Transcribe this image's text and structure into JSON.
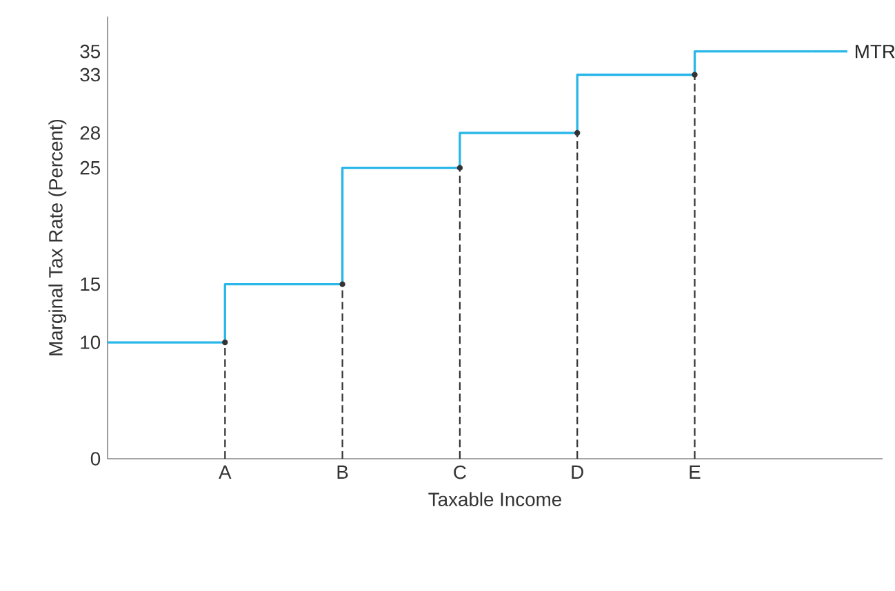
{
  "chart_data": {
    "type": "step",
    "xlabel": "Taxable Income",
    "ylabel": "Marginal Tax Rate (Percent)",
    "categories": [
      null,
      "A",
      "B",
      "C",
      "D",
      "E",
      null
    ],
    "ylim": [
      0,
      38
    ],
    "yticks": [
      0,
      10,
      15,
      25,
      28,
      33,
      35
    ],
    "series": [
      {
        "name": "MTR",
        "color": "#29b6e8",
        "values": [
          10,
          15,
          25,
          28,
          33,
          35,
          35
        ]
      },
      {
        "type": "lollipop",
        "line_style": "dashed",
        "marker": "circle",
        "color": "#333333",
        "values": [
          null,
          10,
          15,
          25,
          28,
          33,
          null
        ]
      }
    ]
  }
}
